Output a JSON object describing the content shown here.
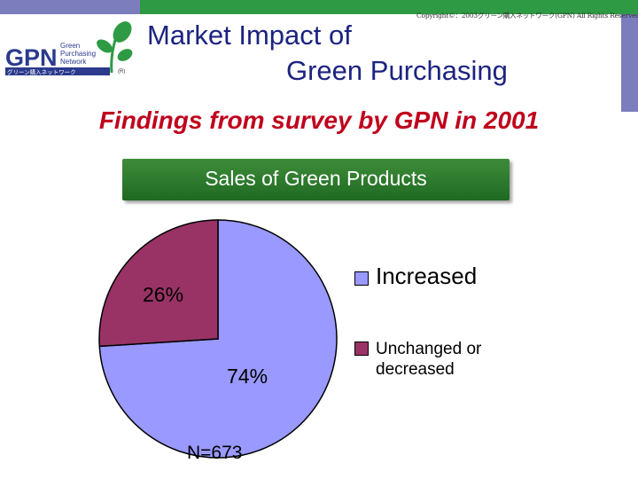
{
  "header": {
    "copyright": "Copyright©：2003グリーン購入ネットワーク(GPN) All Rights Reserved.",
    "title_line1": "Market Impact of",
    "title_line2": "Green Purchasing",
    "subtitle": "Findings from survey by GPN in 2001"
  },
  "logo": {
    "mark": "GPN",
    "line1": "Green",
    "line2": "Purchasing",
    "line3": "Network",
    "jp": "グリーン購入ネットワーク",
    "reg": "(R)"
  },
  "colors": {
    "title": "#1c2380",
    "subtitle": "#c0001c",
    "banner": "#2e7a2e",
    "increased": "#9999ff",
    "unchanged": "#993366"
  },
  "chart_data": {
    "type": "pie",
    "title": "Sales of Green Products",
    "slices": [
      {
        "name": "Increased",
        "value": 74,
        "label": "74%",
        "color": "#9999ff"
      },
      {
        "name": "Unchanged or decreased",
        "value": 26,
        "label": "26%",
        "color": "#993366"
      }
    ],
    "note": "N=673",
    "legend": {
      "placement": "right",
      "items": [
        "Increased",
        "Unchanged or decreased"
      ]
    }
  }
}
